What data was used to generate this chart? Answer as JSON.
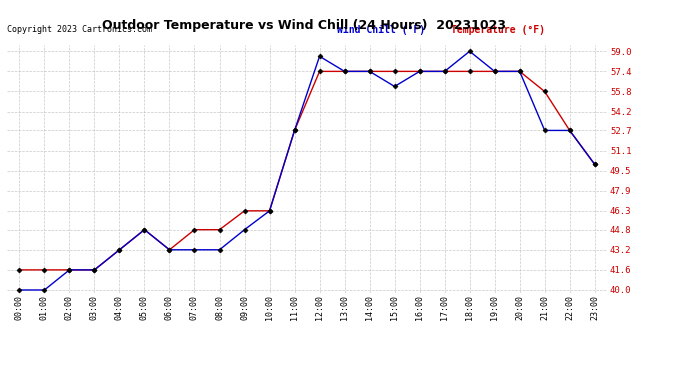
{
  "title": "Outdoor Temperature vs Wind Chill (24 Hours)  20231023",
  "copyright": "Copyright 2023 Cartronics.com",
  "legend_wind_chill": "Wind Chill (°F)",
  "legend_temperature": "Temperature (°F)",
  "x_labels": [
    "00:00",
    "01:00",
    "02:00",
    "03:00",
    "04:00",
    "05:00",
    "06:00",
    "07:00",
    "08:00",
    "09:00",
    "10:00",
    "11:00",
    "12:00",
    "13:00",
    "14:00",
    "15:00",
    "16:00",
    "17:00",
    "18:00",
    "19:00",
    "20:00",
    "21:00",
    "22:00",
    "23:00"
  ],
  "temperature": [
    41.6,
    41.6,
    41.6,
    41.6,
    43.2,
    44.8,
    43.2,
    44.8,
    44.8,
    46.3,
    46.3,
    52.7,
    57.4,
    57.4,
    57.4,
    57.4,
    57.4,
    57.4,
    57.4,
    57.4,
    57.4,
    55.8,
    52.7,
    50.0
  ],
  "wind_chill": [
    40.0,
    40.0,
    41.6,
    41.6,
    43.2,
    44.8,
    43.2,
    43.2,
    43.2,
    44.8,
    46.3,
    52.7,
    58.6,
    57.4,
    57.4,
    56.2,
    57.4,
    57.4,
    59.0,
    57.4,
    57.4,
    52.7,
    52.7,
    50.0
  ],
  "ylim": [
    40.0,
    59.0
  ],
  "y_ticks": [
    40.0,
    41.6,
    43.2,
    44.8,
    46.3,
    47.9,
    49.5,
    51.1,
    52.7,
    54.2,
    55.8,
    57.4,
    59.0
  ],
  "y_tick_labels": [
    "40.0",
    "41.6",
    "43.2",
    "44.8",
    "46.3",
    "47.9",
    "49.5",
    "51.1",
    "52.7",
    "54.2",
    "55.8",
    "57.4",
    "59.0"
  ],
  "temp_color": "#cc0000",
  "wind_chill_color": "#0000cc",
  "background_color": "#ffffff",
  "grid_color": "#bbbbbb",
  "title_color": "#000000",
  "copyright_color": "#000000",
  "marker": "D",
  "marker_color": "#000000",
  "marker_size": 2.5,
  "linewidth": 1.0
}
